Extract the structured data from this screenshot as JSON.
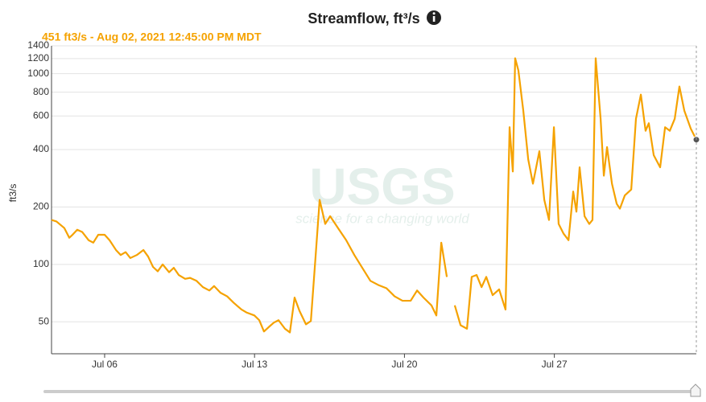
{
  "chart_data": {
    "type": "line",
    "title": "Streamflow, ft³/s",
    "subtitle": "451 ft3/s - Aug 02, 2021 12:45:00 PM MDT",
    "y_label": "ft3/s",
    "watermark": [
      "USGS",
      "science for a changing world"
    ],
    "color": "#f5a200",
    "log_y": true,
    "grid": true,
    "x": [
      3.52,
      3.75,
      4.12,
      4.35,
      4.5,
      4.72,
      4.95,
      5.25,
      5.47,
      5.7,
      6.0,
      6.23,
      6.53,
      6.75,
      6.98,
      7.2,
      7.5,
      7.81,
      8.03,
      8.26,
      8.48,
      8.71,
      9.01,
      9.23,
      9.46,
      9.76,
      9.99,
      10.29,
      10.59,
      10.89,
      11.11,
      11.41,
      11.72,
      12.02,
      12.39,
      12.62,
      12.99,
      13.22,
      13.44,
      13.67,
      13.9,
      14.12,
      14.42,
      14.65,
      14.87,
      15.1,
      15.4,
      15.63,
      15.85,
      16.04,
      16.3,
      16.53,
      16.9,
      17.28,
      17.66,
      18.03,
      18.41,
      18.78,
      19.16,
      19.54,
      19.91,
      20.29,
      20.59,
      20.89,
      21.26,
      21.49,
      21.72,
      21.98,
      22.2,
      22.35,
      22.62,
      22.92,
      23.14,
      23.37,
      23.6,
      23.82,
      24.12,
      24.42,
      24.72,
      24.91,
      25.06,
      25.17,
      25.32,
      25.55,
      25.78,
      26.0,
      26.3,
      26.53,
      26.75,
      26.98,
      27.2,
      27.43,
      27.66,
      27.88,
      28.03,
      28.18,
      28.41,
      28.63,
      28.78,
      28.93,
      29.16,
      29.31,
      29.46,
      29.69,
      29.91,
      30.06,
      30.29,
      30.59,
      30.81,
      31.04,
      31.26,
      31.41,
      31.64,
      31.94,
      32.17,
      32.39,
      32.62,
      32.84,
      33.07,
      33.37,
      33.63
    ],
    "values": [
      171,
      168,
      155,
      138,
      143,
      152,
      148,
      134,
      130,
      143,
      143,
      134,
      119,
      112,
      116,
      108,
      112,
      119,
      110,
      97,
      92,
      100,
      91,
      96,
      88,
      84,
      85,
      82,
      76,
      73,
      77,
      71,
      68,
      63,
      58,
      56,
      54,
      51,
      44.5,
      47,
      49.5,
      51,
      46,
      44,
      67,
      57,
      48.5,
      50.5,
      110,
      218,
      163,
      179,
      155,
      134,
      112,
      96,
      82,
      78,
      75,
      68,
      64.5,
      64.5,
      73,
      67,
      61,
      54,
      130,
      86,
      null,
      61,
      48,
      46,
      86,
      88,
      76,
      86,
      69,
      74,
      58,
      524,
      307,
      1205,
      1041,
      639,
      355,
      265,
      392,
      218,
      171,
      524,
      163,
      145,
      134,
      241,
      189,
      323,
      179,
      163,
      171,
      1205,
      580,
      292,
      412,
      265,
      208,
      196,
      230,
      247,
      580,
      777,
      502,
      550,
      374,
      323,
      524,
      502,
      580,
      857,
      639,
      515,
      451
    ],
    "xlim": [
      3.52,
      33.63
    ],
    "xticks": [
      {
        "value": 6,
        "label": "Jul 06"
      },
      {
        "value": 13,
        "label": "Jul 13"
      },
      {
        "value": 20,
        "label": "Jul 20"
      },
      {
        "value": 27,
        "label": "Jul 27"
      }
    ],
    "ylim": [
      34,
      1400
    ],
    "yticks": [
      50,
      100,
      200,
      400,
      600,
      800,
      1000,
      1200,
      1400
    ]
  }
}
